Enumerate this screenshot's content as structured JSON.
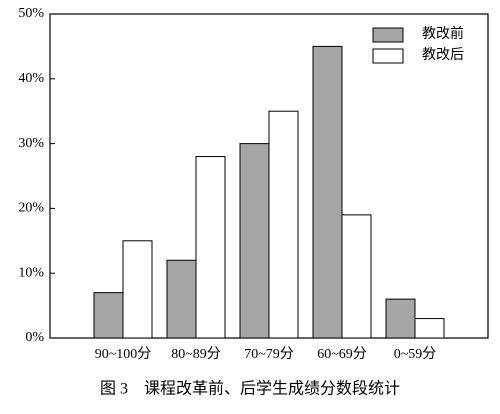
{
  "chart_data": {
    "type": "bar",
    "title": "图 3　课程改革前、后学生成绩分数段统计",
    "categories": [
      "90~100分",
      "80~89分",
      "70~79分",
      "60~69分",
      "0~59分"
    ],
    "series": [
      {
        "name": "教改前",
        "color": "#a6a6a6",
        "values": [
          7,
          12,
          30,
          45,
          6
        ]
      },
      {
        "name": "教改后",
        "color": "#ffffff",
        "values": [
          15,
          28,
          35,
          19,
          3
        ]
      }
    ],
    "ylim": [
      0,
      50
    ],
    "yticks": [
      {
        "value": 0,
        "label": "0%"
      },
      {
        "value": 10,
        "label": "10%"
      },
      {
        "value": 20,
        "label": "20%"
      },
      {
        "value": 30,
        "label": "30%"
      },
      {
        "value": 40,
        "label": "40%"
      },
      {
        "value": 50,
        "label": "50%"
      }
    ],
    "legend": "upper right"
  }
}
